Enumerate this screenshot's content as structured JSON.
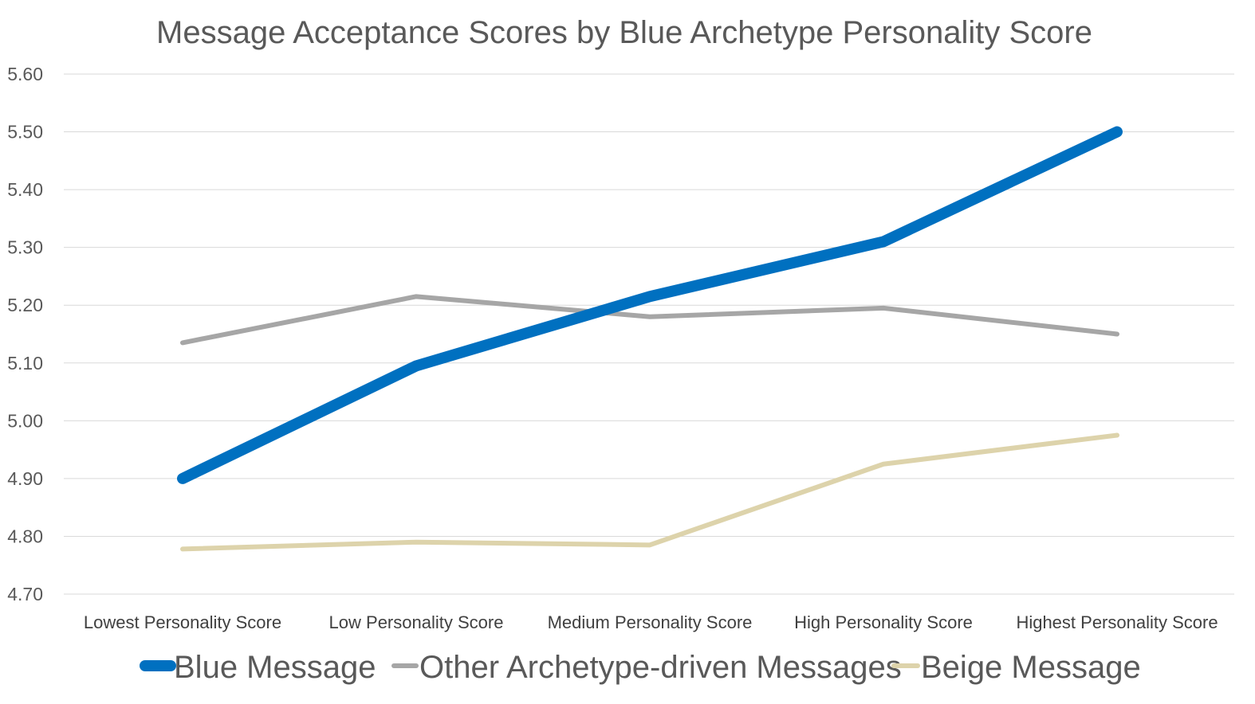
{
  "chart_data": {
    "type": "line",
    "title": "Message Acceptance Scores by Blue Archetype Personality Score",
    "xlabel": "",
    "ylabel": "",
    "categories": [
      "Lowest Personality Score",
      "Low Personality Score",
      "Medium Personality Score",
      "High Personality Score",
      "Highest Personality Score"
    ],
    "ylim": [
      4.7,
      5.6
    ],
    "yticks": [
      "4.70",
      "4.80",
      "4.90",
      "5.00",
      "5.10",
      "5.20",
      "5.30",
      "5.40",
      "5.50",
      "5.60"
    ],
    "grid": true,
    "legend_position": "bottom",
    "series": [
      {
        "name": "Blue Message",
        "values": [
          4.9,
          5.095,
          5.215,
          5.31,
          5.5
        ],
        "color": "#0070C0",
        "weight": "bold"
      },
      {
        "name": "Other Archetype-driven Messages",
        "values": [
          5.135,
          5.215,
          5.18,
          5.195,
          5.15
        ],
        "color": "#A6A6A6",
        "weight": "normal"
      },
      {
        "name": "Beige Message",
        "values": [
          4.778,
          4.79,
          4.785,
          4.925,
          4.975
        ],
        "color": "#DDD3AB",
        "weight": "normal"
      }
    ]
  }
}
